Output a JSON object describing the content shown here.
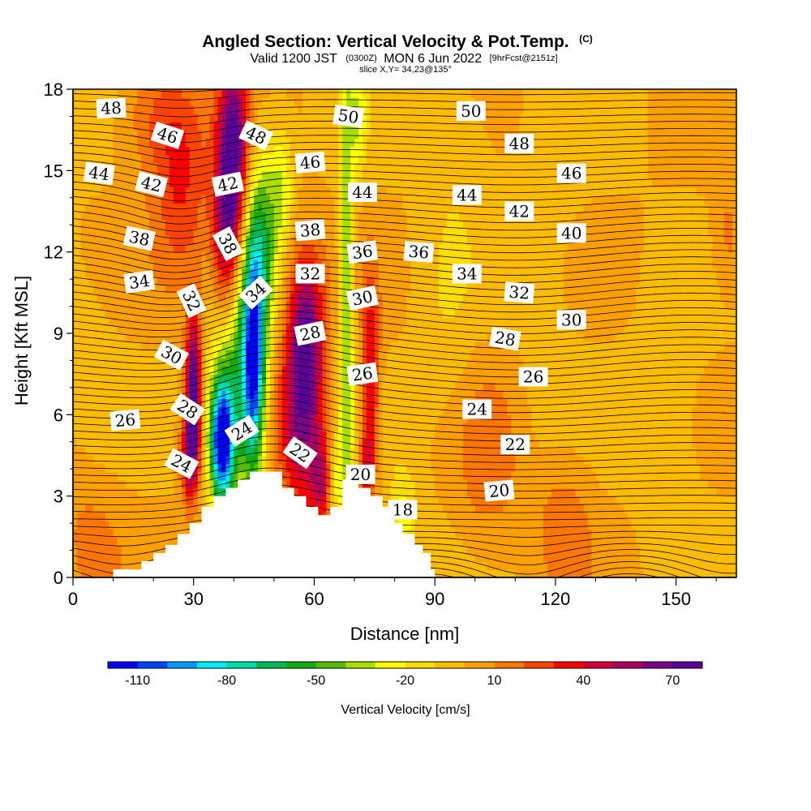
{
  "chart_data": {
    "type": "heatmap",
    "title": {
      "main": "Angled Section: Vertical Velocity & Pot.Temp.",
      "main_suffix": "(C)",
      "valid_prefix": "Valid 1200 JST",
      "valid_utc": "(0300Z)",
      "valid_date": "MON 6 Jun 2022",
      "forecast": "[9hrFcst@2151z]",
      "slice": "slice X,Y= 34,23@135°"
    },
    "xlabel": "Distance [nm]",
    "ylabel": "Height [Kft MSL]",
    "xlim": [
      0,
      165
    ],
    "ylim": [
      0,
      18
    ],
    "x_ticks": [
      "0",
      "30",
      "60",
      "90",
      "120",
      "150"
    ],
    "y_ticks": [
      "0",
      "3",
      "6",
      "9",
      "12",
      "15",
      "18"
    ],
    "colorbar": {
      "title": "Vertical Velocity [cm/s]",
      "labels": [
        "-110",
        "-80",
        "-50",
        "-20",
        "10",
        "40",
        "70"
      ],
      "colors": [
        "#0000ff",
        "#0044ff",
        "#0099ff",
        "#00eeff",
        "#00ddaa",
        "#00bb55",
        "#11aa11",
        "#55bb00",
        "#aadd00",
        "#ffff00",
        "#ffdd00",
        "#ffbb00",
        "#ffa000",
        "#ff7700",
        "#ff4400",
        "#ff0000",
        "#d4003c",
        "#aa0066",
        "#7a008a",
        "#5a0099"
      ]
    },
    "velocity_features": [
      {
        "x": 37,
        "y": 5.0,
        "sx": 2.0,
        "sy": 1.5,
        "v": -110
      },
      {
        "x": 45,
        "y": 8.0,
        "sx": 2.0,
        "sy": 2.8,
        "v": -100
      },
      {
        "x": 40,
        "y": 7.0,
        "sx": 4.0,
        "sy": 3.0,
        "v": -55
      },
      {
        "x": 47,
        "y": 12.5,
        "sx": 3.0,
        "sy": 2.5,
        "v": -45
      },
      {
        "x": 52,
        "y": 14.5,
        "sx": 2.0,
        "sy": 1.5,
        "v": -25
      },
      {
        "x": 68,
        "y": 10.0,
        "sx": 1.3,
        "sy": 7.0,
        "v": -40
      },
      {
        "x": 71,
        "y": 17.0,
        "sx": 1.5,
        "sy": 1.5,
        "v": -25
      },
      {
        "x": 65,
        "y": 3.5,
        "sx": 1.5,
        "sy": 1.2,
        "v": -30
      },
      {
        "x": 82,
        "y": 2.0,
        "sx": 2.5,
        "sy": 1.5,
        "v": -25
      },
      {
        "x": 30,
        "y": 7.0,
        "sx": 1.3,
        "sy": 2.0,
        "v": 80
      },
      {
        "x": 29,
        "y": 4.5,
        "sx": 1.5,
        "sy": 1.2,
        "v": 50
      },
      {
        "x": 40,
        "y": 16.0,
        "sx": 2.5,
        "sy": 2.5,
        "v": 65
      },
      {
        "x": 38,
        "y": 12.5,
        "sx": 2.5,
        "sy": 2.5,
        "v": 55
      },
      {
        "x": 57,
        "y": 6.0,
        "sx": 4.0,
        "sy": 2.5,
        "v": 60
      },
      {
        "x": 58,
        "y": 9.5,
        "sx": 3.0,
        "sy": 2.0,
        "v": 50
      },
      {
        "x": 62,
        "y": 3.5,
        "sx": 2.0,
        "sy": 1.2,
        "v": 40
      },
      {
        "x": 74,
        "y": 7.5,
        "sx": 1.5,
        "sy": 2.5,
        "v": 45
      },
      {
        "x": 73,
        "y": 4.0,
        "sx": 1.2,
        "sy": 1.0,
        "v": 35
      },
      {
        "x": 27,
        "y": 14.5,
        "sx": 5.0,
        "sy": 2.5,
        "v": 30
      },
      {
        "x": 20,
        "y": 17.0,
        "sx": 6.0,
        "sy": 1.5,
        "v": 20
      },
      {
        "x": 4,
        "y": 1.5,
        "sx": 6.0,
        "sy": 2.0,
        "v": 12
      },
      {
        "x": 103,
        "y": 4.0,
        "sx": 6.0,
        "sy": 2.5,
        "v": 15
      },
      {
        "x": 122,
        "y": 2.0,
        "sx": 5.0,
        "sy": 2.0,
        "v": 15
      },
      {
        "x": 163,
        "y": 12.5,
        "sx": 3.0,
        "sy": 1.5,
        "v": 15
      },
      {
        "x": 97,
        "y": 16.0,
        "sx": 6.0,
        "sy": 2.0,
        "v": -8
      },
      {
        "x": 118,
        "y": 13.0,
        "sx": 6.0,
        "sy": 3.0,
        "v": -6
      },
      {
        "x": 93,
        "y": 9.5,
        "sx": 5.0,
        "sy": 4.0,
        "v": -8
      },
      {
        "x": 148,
        "y": 6.0,
        "sx": 6.0,
        "sy": 3.0,
        "v": -10
      },
      {
        "x": 118,
        "y": 7.0,
        "sx": 4.0,
        "sy": 2.0,
        "v": -5
      },
      {
        "x": 5,
        "y": 8.0,
        "sx": 5.0,
        "sy": 3.0,
        "v": -4
      }
    ],
    "terrain": [
      {
        "x": 0,
        "h": 0
      },
      {
        "x": 10,
        "h": 0
      },
      {
        "x": 10,
        "h": 0.3
      },
      {
        "x": 17,
        "h": 0.3
      },
      {
        "x": 17,
        "h": 0.6
      },
      {
        "x": 20,
        "h": 0.6
      },
      {
        "x": 20,
        "h": 0.9
      },
      {
        "x": 23,
        "h": 0.9
      },
      {
        "x": 23,
        "h": 1.2
      },
      {
        "x": 26,
        "h": 1.2
      },
      {
        "x": 26,
        "h": 1.6
      },
      {
        "x": 29,
        "h": 1.6
      },
      {
        "x": 29,
        "h": 2.0
      },
      {
        "x": 32,
        "h": 2.0
      },
      {
        "x": 32,
        "h": 2.6
      },
      {
        "x": 35,
        "h": 2.6
      },
      {
        "x": 35,
        "h": 3.0
      },
      {
        "x": 38,
        "h": 3.0
      },
      {
        "x": 38,
        "h": 3.3
      },
      {
        "x": 41,
        "h": 3.3
      },
      {
        "x": 41,
        "h": 3.6
      },
      {
        "x": 44,
        "h": 3.6
      },
      {
        "x": 44,
        "h": 3.9
      },
      {
        "x": 52,
        "h": 3.9
      },
      {
        "x": 52,
        "h": 3.3
      },
      {
        "x": 55,
        "h": 3.3
      },
      {
        "x": 55,
        "h": 3.0
      },
      {
        "x": 58,
        "h": 3.0
      },
      {
        "x": 58,
        "h": 2.6
      },
      {
        "x": 61,
        "h": 2.6
      },
      {
        "x": 61,
        "h": 2.3
      },
      {
        "x": 64,
        "h": 2.3
      },
      {
        "x": 64,
        "h": 2.6
      },
      {
        "x": 67,
        "h": 2.6
      },
      {
        "x": 67,
        "h": 3.6
      },
      {
        "x": 71,
        "h": 3.6
      },
      {
        "x": 71,
        "h": 3.3
      },
      {
        "x": 74,
        "h": 3.3
      },
      {
        "x": 74,
        "h": 3.0
      },
      {
        "x": 77,
        "h": 3.0
      },
      {
        "x": 77,
        "h": 2.6
      },
      {
        "x": 80,
        "h": 2.6
      },
      {
        "x": 80,
        "h": 2.0
      },
      {
        "x": 82,
        "h": 2.0
      },
      {
        "x": 82,
        "h": 1.6
      },
      {
        "x": 85,
        "h": 1.6
      },
      {
        "x": 85,
        "h": 1.2
      },
      {
        "x": 87,
        "h": 1.2
      },
      {
        "x": 87,
        "h": 0.9
      },
      {
        "x": 89,
        "h": 0.9
      },
      {
        "x": 89,
        "h": 0.3
      },
      {
        "x": 90,
        "h": 0.3
      },
      {
        "x": 90,
        "h": 0
      }
    ],
    "theta_contours": {
      "min": 17,
      "max": 51,
      "step": 0.5
    },
    "contour_labels": [
      {
        "text": "48",
        "x": 9.5,
        "y": 17.3,
        "angle": -3
      },
      {
        "text": "46",
        "x": 23.5,
        "y": 16.3,
        "angle": 18
      },
      {
        "text": "44",
        "x": 6.5,
        "y": 14.9,
        "angle": 8
      },
      {
        "text": "42",
        "x": 19.5,
        "y": 14.5,
        "angle": 14
      },
      {
        "text": "38",
        "x": 16.5,
        "y": 12.5,
        "angle": 12
      },
      {
        "text": "34",
        "x": 16.5,
        "y": 10.9,
        "angle": -8
      },
      {
        "text": "48",
        "x": 45.5,
        "y": 16.3,
        "angle": 25
      },
      {
        "text": "42",
        "x": 38.5,
        "y": 14.5,
        "angle": -12
      },
      {
        "text": "38",
        "x": 38.5,
        "y": 12.3,
        "angle": 62
      },
      {
        "text": "32",
        "x": 29.5,
        "y": 10.2,
        "angle": 65
      },
      {
        "text": "34",
        "x": 45.5,
        "y": 10.5,
        "angle": -42
      },
      {
        "text": "30",
        "x": 24.5,
        "y": 8.2,
        "angle": 28
      },
      {
        "text": "28",
        "x": 28.5,
        "y": 6.2,
        "angle": 33
      },
      {
        "text": "26",
        "x": 13,
        "y": 5.8,
        "angle": -5
      },
      {
        "text": "24",
        "x": 27,
        "y": 4.2,
        "angle": 28
      },
      {
        "text": "24",
        "x": 42,
        "y": 5.4,
        "angle": -32
      },
      {
        "text": "22",
        "x": 56.5,
        "y": 4.6,
        "angle": 35
      },
      {
        "text": "50",
        "x": 68.5,
        "y": 17.0,
        "angle": 8
      },
      {
        "text": "46",
        "x": 59,
        "y": 15.3,
        "angle": -5
      },
      {
        "text": "44",
        "x": 72,
        "y": 14.2,
        "angle": 0
      },
      {
        "text": "38",
        "x": 59,
        "y": 12.8,
        "angle": -5
      },
      {
        "text": "36",
        "x": 72,
        "y": 12.0,
        "angle": -8
      },
      {
        "text": "36",
        "x": 86,
        "y": 12.0,
        "angle": 5
      },
      {
        "text": "32",
        "x": 59,
        "y": 11.2,
        "angle": 0
      },
      {
        "text": "30",
        "x": 72,
        "y": 10.3,
        "angle": -12
      },
      {
        "text": "28",
        "x": 59,
        "y": 9.0,
        "angle": -12
      },
      {
        "text": "26",
        "x": 72,
        "y": 7.5,
        "angle": -8
      },
      {
        "text": "20",
        "x": 71.5,
        "y": 3.8,
        "angle": 0
      },
      {
        "text": "18",
        "x": 82,
        "y": 2.5,
        "angle": 0
      },
      {
        "text": "50",
        "x": 99,
        "y": 17.2,
        "angle": 0
      },
      {
        "text": "48",
        "x": 111,
        "y": 16.0,
        "angle": 0
      },
      {
        "text": "46",
        "x": 124,
        "y": 14.9,
        "angle": 0
      },
      {
        "text": "44",
        "x": 98,
        "y": 14.1,
        "angle": 0
      },
      {
        "text": "42",
        "x": 111,
        "y": 13.5,
        "angle": 0
      },
      {
        "text": "40",
        "x": 124,
        "y": 12.7,
        "angle": 0
      },
      {
        "text": "34",
        "x": 98,
        "y": 11.2,
        "angle": 0
      },
      {
        "text": "32",
        "x": 111,
        "y": 10.5,
        "angle": 5
      },
      {
        "text": "30",
        "x": 124,
        "y": 9.5,
        "angle": 0
      },
      {
        "text": "28",
        "x": 107.5,
        "y": 8.8,
        "angle": 10
      },
      {
        "text": "26",
        "x": 114.5,
        "y": 7.4,
        "angle": 0
      },
      {
        "text": "24",
        "x": 100.5,
        "y": 6.2,
        "angle": 0
      },
      {
        "text": "22",
        "x": 110,
        "y": 4.9,
        "angle": 0
      },
      {
        "text": "20",
        "x": 106,
        "y": 3.2,
        "angle": -5
      }
    ]
  }
}
